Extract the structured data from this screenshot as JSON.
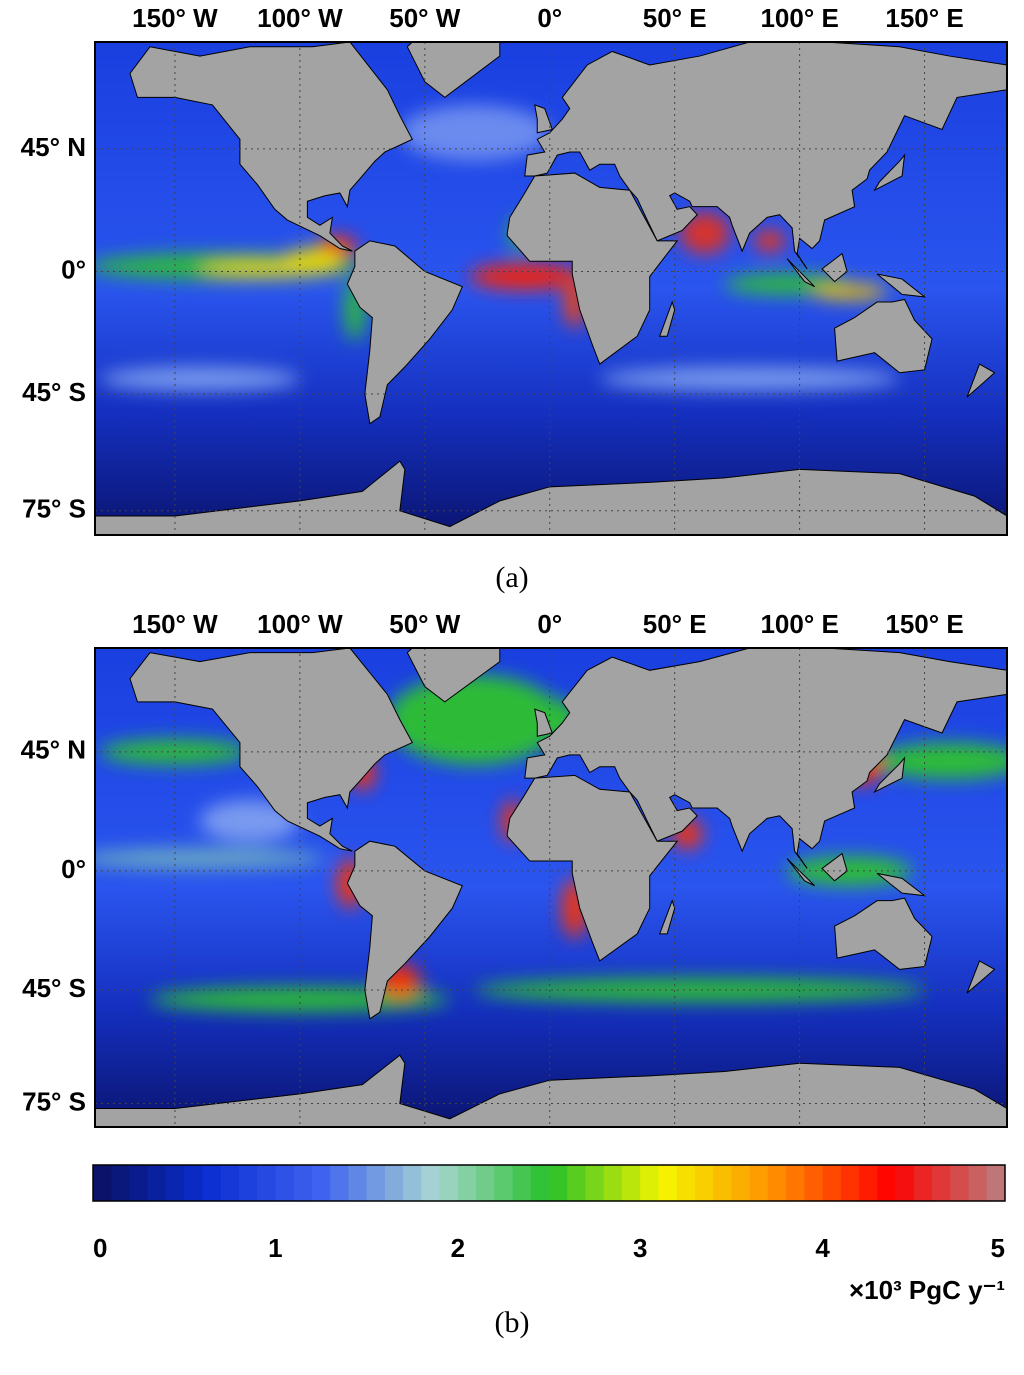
{
  "projection": "miller",
  "xlim": [
    -182,
    183
  ],
  "ylim": [
    -79.5,
    73
  ],
  "grid": true,
  "land_color": "#a3a3a3",
  "panels": [
    {
      "label": "(a)",
      "xticks": [
        {
          "value": -150,
          "label": "150° W"
        },
        {
          "value": -100,
          "label": "100° W"
        },
        {
          "value": -50,
          "label": "50° W"
        },
        {
          "value": 0,
          "label": "0°"
        },
        {
          "value": 50,
          "label": "50° E"
        },
        {
          "value": 100,
          "label": "100° E"
        },
        {
          "value": 150,
          "label": "150° E"
        }
      ],
      "yticks": [
        {
          "value": 45,
          "label": "45° N"
        },
        {
          "value": 0,
          "label": "0°"
        },
        {
          "value": -45,
          "label": "45° S"
        },
        {
          "value": -75,
          "label": "75° S"
        }
      ]
    },
    {
      "label": "(b)",
      "xticks": [
        {
          "value": -150,
          "label": "150° W"
        },
        {
          "value": -100,
          "label": "100° W"
        },
        {
          "value": -50,
          "label": "50° W"
        },
        {
          "value": 0,
          "label": "0°"
        },
        {
          "value": 50,
          "label": "50° E"
        },
        {
          "value": 100,
          "label": "100° E"
        },
        {
          "value": 150,
          "label": "150° E"
        }
      ],
      "yticks": [
        {
          "value": 45,
          "label": "45° N"
        },
        {
          "value": 0,
          "label": "0°"
        },
        {
          "value": -45,
          "label": "45° S"
        },
        {
          "value": -75,
          "label": "75° S"
        }
      ]
    }
  ],
  "colorbar": {
    "lim": [
      0,
      5
    ],
    "ticks": [
      0,
      1,
      2,
      3,
      4,
      5
    ],
    "label": "×10³ PgC y⁻¹",
    "colors": [
      "#0a1060",
      "#0a2ed0",
      "#3f62f0",
      "#a9d6d2",
      "#27c02a",
      "#f5f500",
      "#ff8c00",
      "#ff0000",
      "#b88080"
    ]
  }
}
